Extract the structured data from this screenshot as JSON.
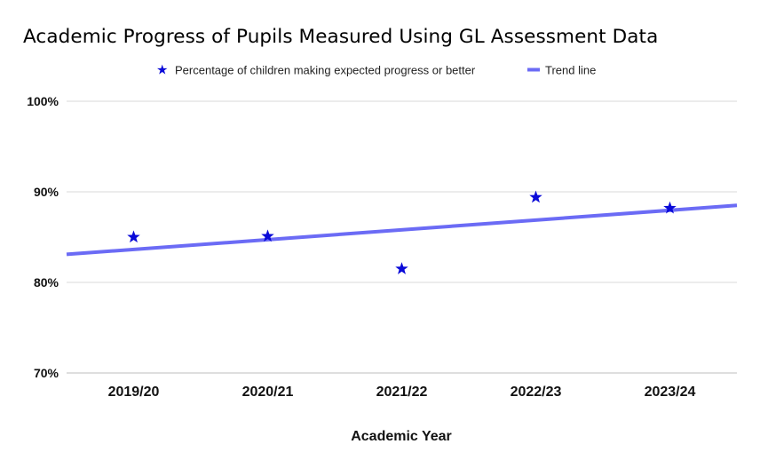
{
  "chart_data": {
    "type": "scatter",
    "title": "Academic Progress of Pupils Measured Using GL Assessment Data",
    "xlabel": "Academic Year",
    "ylabel": "",
    "categories": [
      "2019/20",
      "2020/21",
      "2021/22",
      "2022/23",
      "2023/24"
    ],
    "ylim": [
      70,
      100
    ],
    "y_ticks": [
      {
        "value": 100,
        "label": "100%"
      },
      {
        "value": 90,
        "label": "90%"
      },
      {
        "value": 80,
        "label": "80%"
      },
      {
        "value": 70,
        "label": "70%"
      }
    ],
    "grid": true,
    "legend_position": "top",
    "series": [
      {
        "name": "Percentage of children making expected progress or better",
        "marker": "star",
        "color": "#0a0ad8",
        "values": [
          85.0,
          85.1,
          81.5,
          89.4,
          88.2
        ]
      }
    ],
    "trend_line": {
      "name": "Trend line",
      "color": "#6b6bf5",
      "start_value": 83.1,
      "end_value": 88.5
    }
  }
}
